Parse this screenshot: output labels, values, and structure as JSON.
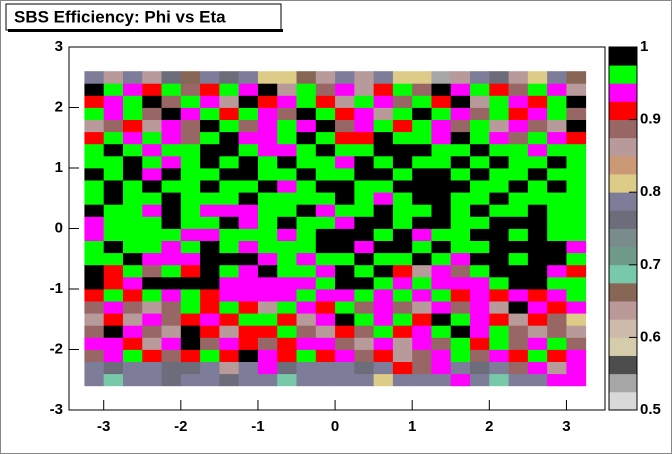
{
  "chart_data": {
    "type": "heatmap",
    "title": "SBS Efficiency: Phi vs Eta",
    "xlim": [
      -3.45,
      3.5
    ],
    "xticks": [
      -3,
      -2,
      -1,
      0,
      1,
      2,
      3
    ],
    "ylim": [
      -3,
      3
    ],
    "yticks": [
      -3,
      -2,
      -1,
      0,
      1,
      2,
      3
    ],
    "zlim": [
      0.5,
      1
    ],
    "zticks": [
      0.5,
      0.6,
      0.7,
      0.8,
      0.9,
      1
    ],
    "palette": [
      "#d9d9d9",
      "#a6a6a6",
      "#4d4d4d",
      "#d4ccaa",
      "#ccbbaa",
      "#bb9999",
      "#886655",
      "#77c9a9",
      "#6f9a89",
      "#7a8b8b",
      "#6c6c7a",
      "#7d7d99",
      "#ddcc88",
      "#cc9977",
      "#b99a9a",
      "#996666",
      "#ff0000",
      "#ff00ff",
      "#00ff00",
      "#000000"
    ],
    "xbins": [
      -3.25,
      -3,
      -2.75,
      -2.5,
      -2.25,
      -2,
      -1.75,
      -1.5,
      -1.25,
      -1,
      -0.75,
      -0.5,
      -0.25,
      0,
      0.25,
      0.5,
      0.75,
      1,
      1.25,
      1.5,
      1.75,
      2,
      2.25,
      2.5,
      2.75,
      3,
      3.25
    ],
    "ybins": [
      -2.6,
      -2.4,
      -2.2,
      -2,
      -1.8,
      -1.6,
      -1.4,
      -1.2,
      -1,
      -0.8,
      -0.6,
      -0.4,
      -0.2,
      0,
      0.2,
      0.4,
      0.6,
      0.8,
      1,
      1.2,
      1.4,
      1.6,
      1.8,
      2,
      2.2,
      2.4,
      2.6
    ],
    "z": [
      [
        0.79,
        0.69,
        0.79,
        0.79,
        0.76,
        0.79,
        0.79,
        0.76,
        0.79,
        0.79,
        0.69,
        0.79,
        0.79,
        0.79,
        0.79,
        0.81,
        0.79,
        0.79,
        0.79,
        0.94,
        0.79,
        0.69,
        0.79,
        0.79,
        0.94,
        0.94
      ],
      [
        0.79,
        0.76,
        0.79,
        0.79,
        0.76,
        0.76,
        0.79,
        0.86,
        0.79,
        0.94,
        0.76,
        0.79,
        0.79,
        0.79,
        0.76,
        0.79,
        0.91,
        0.89,
        0.94,
        0.79,
        0.76,
        0.79,
        0.89,
        0.94,
        0.86,
        0.94
      ],
      [
        0.89,
        0.94,
        0.96,
        0.91,
        0.89,
        0.91,
        0.96,
        0.91,
        0.99,
        0.94,
        0.91,
        0.96,
        0.91,
        0.94,
        0.89,
        0.91,
        0.86,
        0.89,
        0.94,
        0.96,
        0.89,
        0.94,
        0.91,
        0.96,
        0.91,
        0.94
      ],
      [
        0.94,
        0.94,
        0.91,
        0.86,
        0.94,
        0.99,
        0.89,
        0.94,
        0.91,
        0.89,
        0.91,
        0.94,
        0.94,
        0.89,
        0.86,
        0.94,
        0.86,
        0.94,
        0.89,
        0.96,
        0.91,
        0.96,
        0.89,
        0.94,
        0.96,
        0.89
      ],
      [
        0.89,
        0.99,
        0.94,
        0.89,
        0.86,
        0.99,
        0.91,
        0.86,
        0.91,
        0.91,
        0.96,
        0.89,
        0.86,
        0.91,
        0.89,
        0.96,
        0.91,
        0.94,
        0.96,
        0.99,
        0.94,
        0.96,
        0.89,
        0.86,
        0.89,
        0.86
      ],
      [
        0.86,
        0.91,
        0.86,
        0.94,
        0.89,
        0.91,
        0.94,
        0.91,
        0.96,
        0.96,
        0.91,
        0.86,
        0.94,
        0.99,
        0.96,
        0.94,
        0.96,
        0.91,
        0.99,
        0.96,
        0.94,
        0.91,
        0.86,
        0.91,
        0.89,
        0.81
      ],
      [
        0.89,
        0.94,
        0.89,
        0.86,
        0.89,
        0.96,
        0.91,
        0.96,
        0.91,
        0.86,
        0.96,
        0.94,
        0.91,
        0.96,
        0.89,
        0.94,
        0.89,
        0.86,
        0.94,
        0.89,
        0.94,
        0.86,
        0.99,
        0.94,
        0.91,
        0.94
      ],
      [
        0.91,
        0.96,
        0.91,
        0.96,
        0.94,
        0.96,
        0.91,
        0.94,
        0.94,
        0.94,
        0.94,
        0.96,
        0.94,
        0.94,
        0.96,
        0.94,
        0.96,
        0.94,
        0.96,
        0.91,
        0.94,
        0.91,
        0.94,
        0.91,
        0.94,
        0.96
      ],
      [
        0.99,
        0.91,
        0.94,
        0.99,
        0.99,
        0.99,
        0.99,
        0.94,
        0.94,
        0.94,
        0.94,
        0.94,
        0.96,
        0.99,
        0.99,
        0.96,
        0.94,
        0.96,
        0.94,
        0.94,
        0.94,
        0.96,
        0.99,
        0.99,
        0.96,
        0.96
      ],
      [
        0.99,
        0.91,
        0.96,
        0.89,
        0.96,
        0.91,
        0.99,
        0.96,
        0.94,
        0.99,
        0.96,
        0.96,
        0.94,
        0.99,
        0.96,
        0.99,
        0.91,
        0.86,
        0.94,
        0.89,
        0.96,
        0.99,
        0.99,
        0.99,
        0.94,
        0.91
      ],
      [
        0.96,
        0.96,
        0.99,
        0.94,
        0.94,
        0.94,
        0.99,
        0.99,
        0.99,
        0.94,
        0.96,
        0.94,
        0.96,
        0.96,
        0.99,
        0.96,
        0.96,
        0.99,
        0.96,
        0.94,
        0.99,
        0.99,
        0.96,
        0.99,
        0.99,
        0.96
      ],
      [
        0.96,
        0.99,
        0.96,
        0.96,
        0.94,
        0.96,
        0.99,
        0.96,
        0.94,
        0.96,
        0.96,
        0.96,
        0.99,
        0.99,
        0.94,
        0.99,
        0.99,
        0.96,
        0.99,
        0.96,
        0.96,
        0.99,
        0.99,
        0.99,
        0.99,
        0.94
      ],
      [
        0.94,
        0.96,
        0.96,
        0.96,
        0.96,
        0.94,
        0.94,
        0.96,
        0.96,
        0.96,
        0.94,
        0.96,
        0.99,
        0.99,
        0.99,
        0.96,
        0.99,
        0.94,
        0.96,
        0.96,
        0.99,
        0.99,
        0.96,
        0.99,
        0.96,
        0.96
      ],
      [
        0.94,
        0.96,
        0.96,
        0.96,
        0.99,
        0.96,
        0.96,
        0.99,
        0.94,
        0.96,
        0.99,
        0.96,
        0.96,
        0.94,
        0.99,
        0.99,
        0.96,
        0.99,
        0.99,
        0.96,
        0.96,
        0.99,
        0.99,
        0.99,
        0.96,
        0.96
      ],
      [
        0.99,
        0.96,
        0.96,
        0.94,
        0.99,
        0.96,
        0.94,
        0.94,
        0.94,
        0.96,
        0.96,
        0.99,
        0.94,
        0.96,
        0.96,
        0.99,
        0.96,
        0.96,
        0.99,
        0.96,
        0.99,
        0.96,
        0.96,
        0.99,
        0.96,
        0.96
      ],
      [
        0.96,
        0.99,
        0.96,
        0.96,
        0.99,
        0.96,
        0.96,
        0.96,
        0.99,
        0.96,
        0.96,
        0.96,
        0.96,
        0.99,
        0.96,
        0.94,
        0.96,
        0.99,
        0.99,
        0.96,
        0.96,
        0.99,
        0.96,
        0.96,
        0.96,
        0.96
      ],
      [
        0.96,
        0.99,
        0.96,
        0.99,
        0.96,
        0.96,
        0.99,
        0.96,
        0.96,
        0.99,
        0.94,
        0.96,
        0.99,
        0.99,
        0.96,
        0.96,
        0.99,
        0.99,
        0.99,
        0.99,
        0.96,
        0.96,
        0.99,
        0.96,
        0.99,
        0.96
      ],
      [
        0.99,
        0.96,
        0.99,
        0.94,
        0.99,
        0.96,
        0.96,
        0.99,
        0.99,
        0.96,
        0.96,
        0.99,
        0.96,
        0.96,
        0.99,
        0.99,
        0.96,
        0.99,
        0.99,
        0.96,
        0.99,
        0.96,
        0.96,
        0.99,
        0.96,
        0.96
      ],
      [
        0.96,
        0.96,
        0.99,
        0.96,
        0.94,
        0.96,
        0.99,
        0.96,
        0.99,
        0.96,
        0.99,
        0.96,
        0.96,
        0.94,
        0.99,
        0.96,
        0.99,
        0.96,
        0.96,
        0.99,
        0.96,
        0.99,
        0.96,
        0.96,
        0.99,
        0.96
      ],
      [
        0.96,
        0.99,
        0.96,
        0.94,
        0.96,
        0.96,
        0.99,
        0.99,
        0.96,
        0.94,
        0.94,
        0.96,
        0.99,
        0.96,
        0.96,
        0.99,
        0.99,
        0.99,
        0.96,
        0.96,
        0.99,
        0.96,
        0.96,
        0.94,
        0.96,
        0.96
      ],
      [
        0.91,
        0.96,
        0.94,
        0.96,
        0.94,
        0.89,
        0.96,
        0.99,
        0.94,
        0.94,
        0.96,
        0.99,
        0.96,
        0.91,
        0.91,
        0.99,
        0.96,
        0.96,
        0.94,
        0.99,
        0.96,
        0.94,
        0.89,
        0.96,
        0.94,
        0.91
      ],
      [
        0.86,
        0.89,
        0.91,
        0.86,
        0.94,
        0.89,
        0.99,
        0.96,
        0.89,
        0.94,
        0.96,
        0.94,
        0.99,
        0.89,
        0.94,
        0.96,
        0.91,
        0.96,
        0.94,
        0.89,
        0.96,
        0.86,
        0.94,
        0.89,
        0.86,
        0.99
      ],
      [
        0.96,
        0.94,
        0.96,
        0.89,
        0.99,
        0.94,
        0.96,
        0.91,
        0.96,
        0.94,
        0.89,
        0.99,
        0.96,
        0.91,
        0.94,
        0.86,
        0.96,
        0.99,
        0.96,
        0.94,
        0.89,
        0.96,
        0.91,
        0.94,
        0.96,
        0.89
      ],
      [
        0.91,
        0.94,
        0.96,
        0.99,
        0.89,
        0.96,
        0.94,
        0.86,
        0.99,
        0.91,
        0.94,
        0.96,
        0.91,
        0.86,
        0.96,
        0.94,
        0.89,
        0.96,
        0.91,
        0.99,
        0.86,
        0.96,
        0.94,
        0.91,
        0.96,
        0.99
      ],
      [
        0.99,
        0.96,
        0.94,
        0.91,
        0.96,
        0.89,
        0.91,
        0.96,
        0.94,
        0.99,
        0.86,
        0.96,
        0.89,
        0.94,
        0.86,
        0.91,
        0.96,
        0.89,
        0.99,
        0.94,
        0.96,
        0.91,
        0.89,
        0.96,
        0.94,
        0.86
      ],
      [
        0.79,
        0.86,
        0.79,
        0.86,
        0.76,
        0.66,
        0.79,
        0.76,
        0.79,
        0.81,
        0.81,
        0.66,
        0.86,
        0.79,
        0.86,
        0.79,
        0.81,
        0.81,
        0.54,
        0.86,
        0.79,
        0.76,
        0.86,
        0.81,
        0.79,
        0.66
      ]
    ]
  }
}
